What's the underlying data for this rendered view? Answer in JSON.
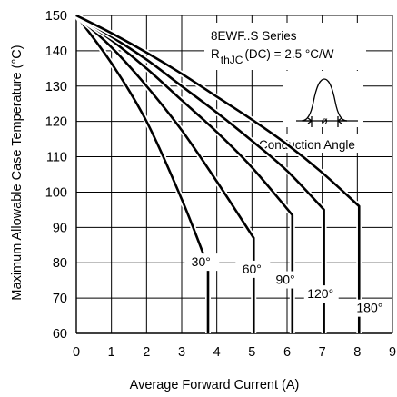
{
  "chart_data": {
    "type": "line",
    "xlabel": "Average Forward Current (A)",
    "ylabel": "Maximum Allowable Case Temperature (°C)",
    "xlim": [
      0,
      9
    ],
    "ylim": [
      60,
      150
    ],
    "x_ticks": [
      "0",
      "1",
      "2",
      "3",
      "4",
      "5",
      "6",
      "7",
      "8",
      "9"
    ],
    "y_ticks": [
      "60",
      "70",
      "80",
      "90",
      "100",
      "110",
      "120",
      "130",
      "140",
      "150"
    ],
    "grid": true,
    "annotations": {
      "series_name": "8EWF..S Series",
      "rthjc_symbol": "R",
      "rthjc_subscript": "thJC",
      "rthjc_value": "(DC) = 2.5 °C/W",
      "conduction_angle": "Conduction Angle",
      "angle_symbol": "ø"
    },
    "series": [
      {
        "label": "30°",
        "x": [
          0,
          1,
          2,
          3,
          3.75,
          3.75
        ],
        "y": [
          150,
          136.5,
          120,
          98,
          79,
          60
        ]
      },
      {
        "label": "60°",
        "x": [
          0,
          1,
          2,
          3,
          4,
          5.05,
          5.05
        ],
        "y": [
          150,
          141,
          130,
          117.5,
          103,
          87,
          60
        ]
      },
      {
        "label": "90°",
        "x": [
          0,
          1,
          2,
          3,
          4,
          5,
          6.15,
          6.15
        ],
        "y": [
          150,
          143,
          135,
          126,
          117,
          107,
          93.5,
          60
        ]
      },
      {
        "label": "120°",
        "x": [
          0,
          1,
          2,
          3,
          4,
          5,
          6,
          7.05,
          7.05
        ],
        "y": [
          150,
          144,
          137.5,
          130,
          122.5,
          114.5,
          106,
          95,
          60
        ]
      },
      {
        "label": "180°",
        "x": [
          0,
          1,
          2,
          3,
          4,
          5,
          6,
          7,
          8.05,
          8.05
        ],
        "y": [
          150,
          145,
          139.5,
          133.5,
          127,
          120.5,
          113.5,
          105.5,
          96,
          60
        ]
      }
    ]
  }
}
